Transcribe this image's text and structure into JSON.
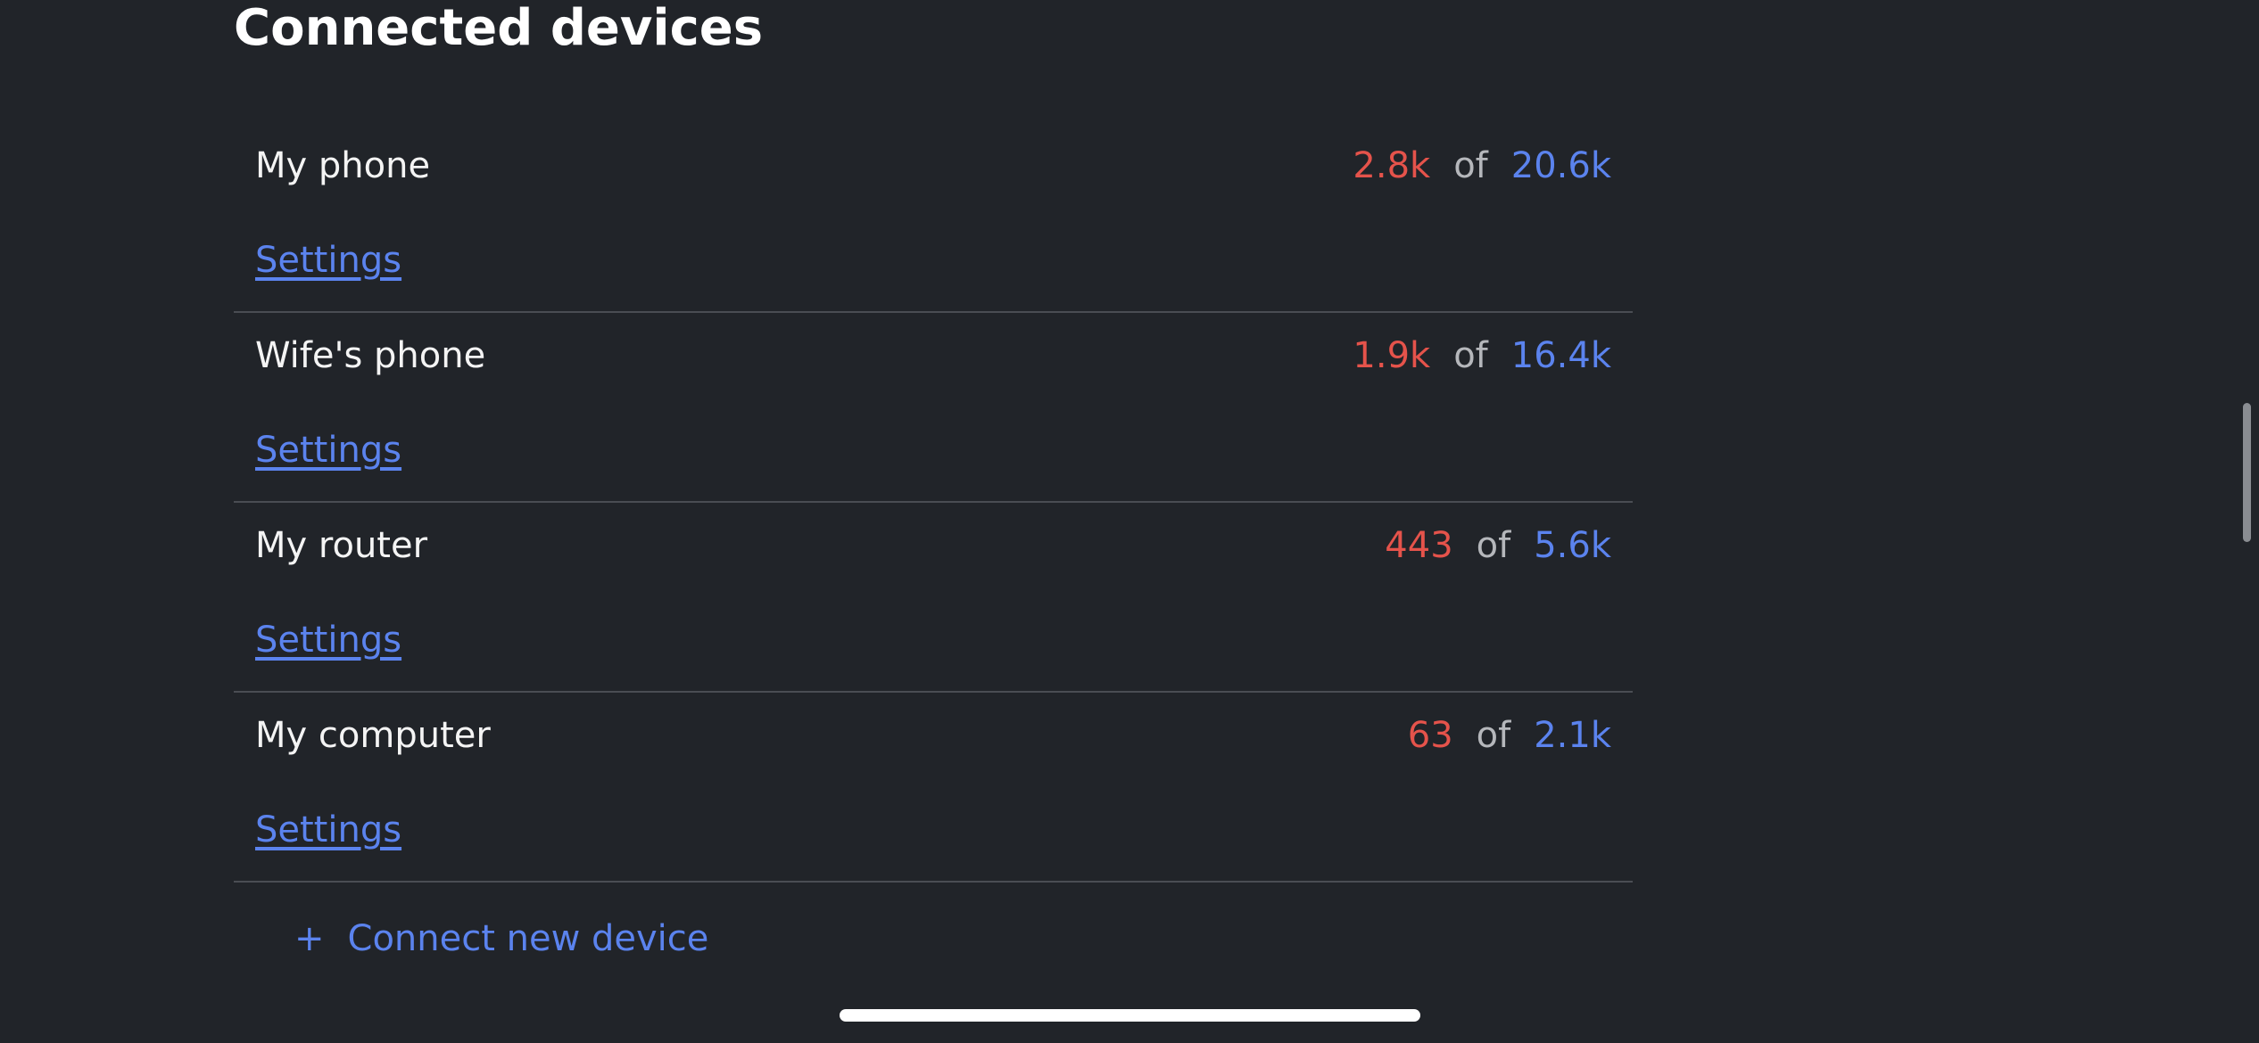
{
  "section_title": "Connected devices",
  "devices": [
    {
      "name": "My phone",
      "used": "2.8k",
      "of": "of",
      "total": "20.6k",
      "settings_label": "Settings"
    },
    {
      "name": "Wife's phone",
      "used": "1.9k",
      "of": "of",
      "total": "16.4k",
      "settings_label": "Settings"
    },
    {
      "name": "My router",
      "used": "443",
      "of": "of",
      "total": "5.6k",
      "settings_label": "Settings"
    },
    {
      "name": "My computer",
      "used": "63",
      "of": "of",
      "total": "2.1k",
      "settings_label": "Settings"
    }
  ],
  "connect_new": {
    "icon": "+",
    "label": "Connect new device"
  },
  "colors": {
    "background": "#212429",
    "used": "#e5534b",
    "total": "#5b83ee",
    "link": "#5b83ee"
  }
}
